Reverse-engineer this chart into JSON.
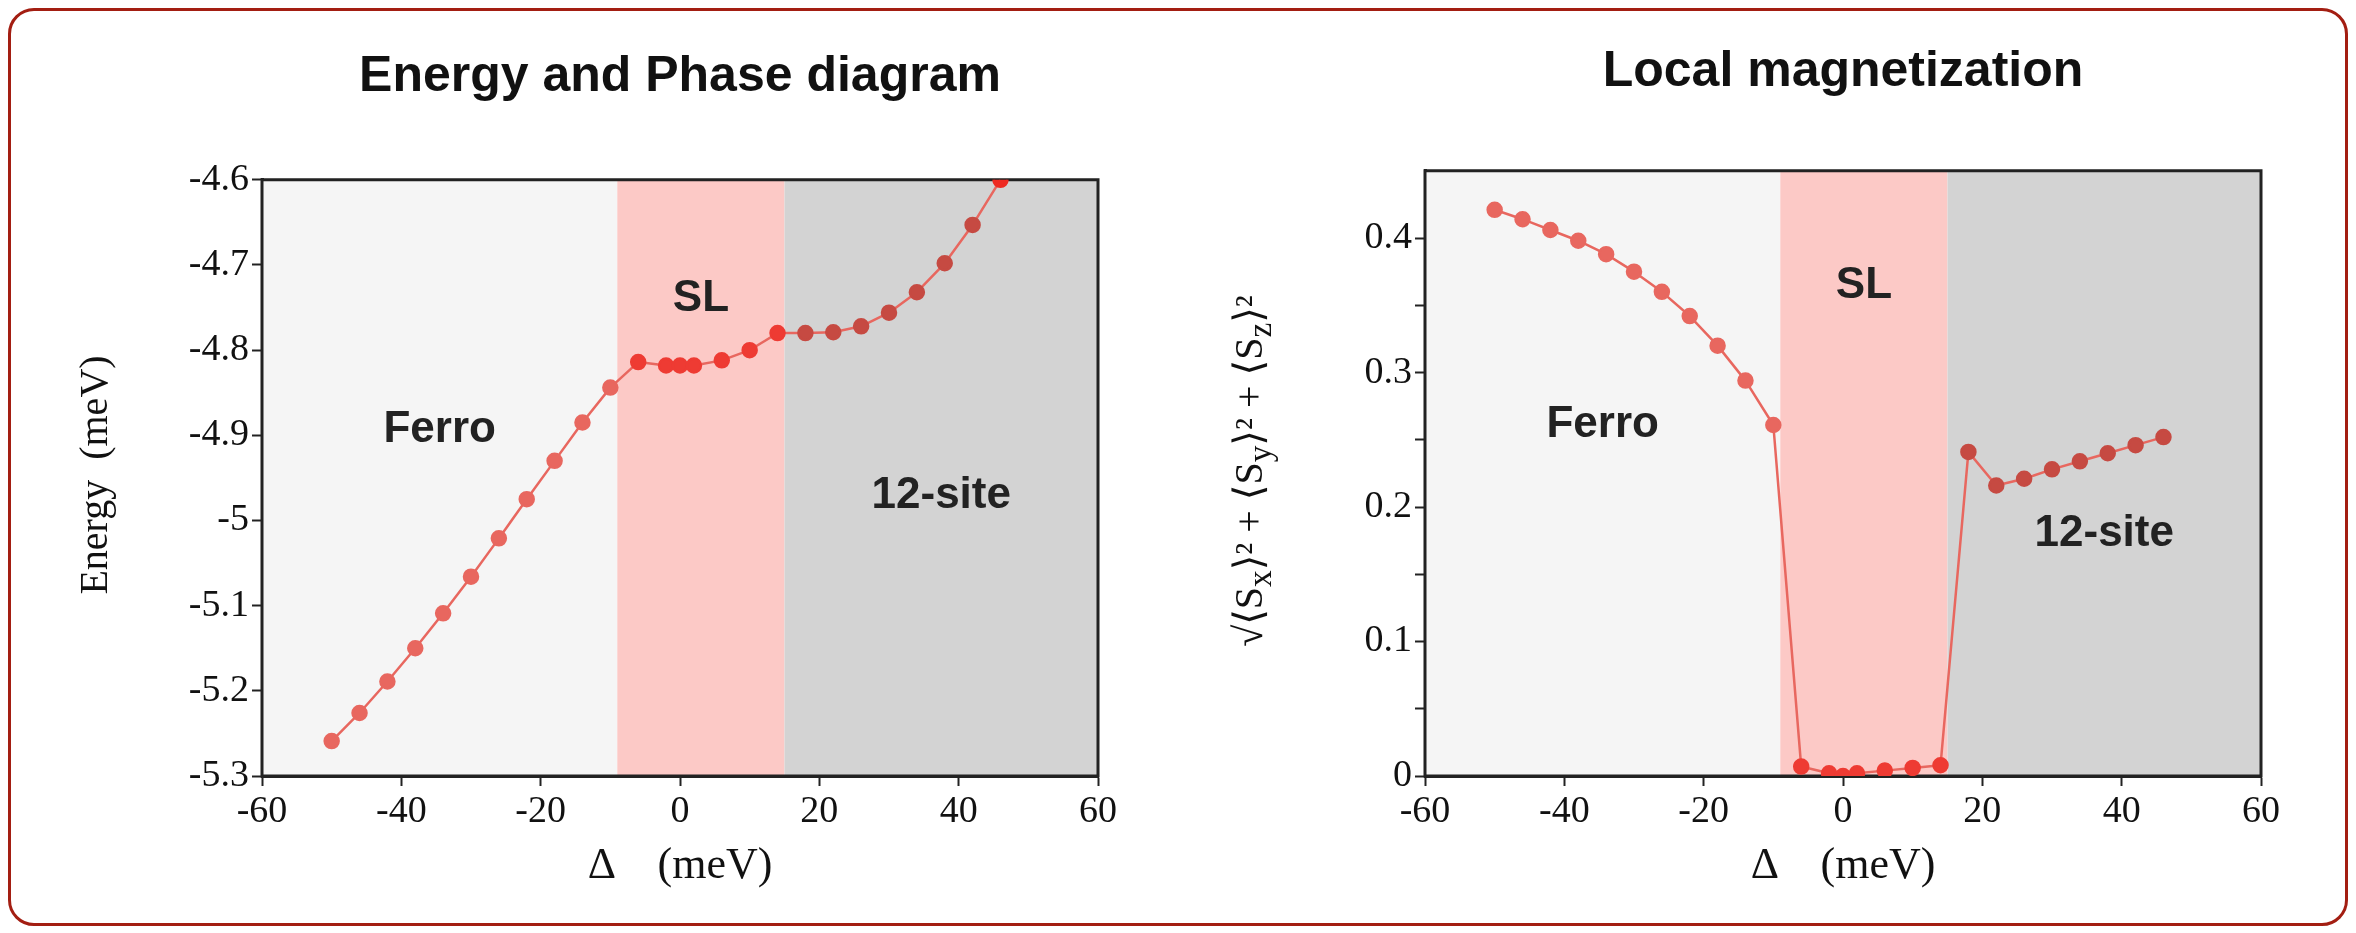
{
  "chart_data": [
    {
      "type": "line",
      "title": "Energy and Phase diagram",
      "xlabel": "Δ    (meV)",
      "ylabel": "Energy  (meV)",
      "xlim": [
        -60,
        60
      ],
      "xticks": [
        -60,
        -40,
        -20,
        0,
        20,
        40,
        60
      ],
      "ylim": [
        -5.3,
        -4.6
      ],
      "yticks": [
        -5.3,
        -5.2,
        -5.1,
        -5,
        -4.9,
        -4.8,
        -4.7,
        -4.6
      ],
      "grid": false,
      "marker": "circle",
      "line_style": "solid",
      "bands": [
        {
          "axis": "x",
          "from": -60,
          "to": -9,
          "label": "Ferro",
          "color": "#f5f5f5"
        },
        {
          "axis": "x",
          "from": -9,
          "to": 15,
          "label": "SL",
          "color": "#fcc9c6"
        },
        {
          "axis": "x",
          "from": 15,
          "to": 60,
          "label": "12-site",
          "color": "#d3d3d3"
        }
      ],
      "series": [
        {
          "color": "#e8675f",
          "x": [
            -50,
            -46,
            -42,
            -38,
            -34,
            -30,
            -26,
            -22,
            -18,
            -14,
            -10,
            -6,
            -2,
            0,
            2,
            6,
            10,
            14,
            18,
            22,
            26,
            30,
            34,
            38,
            42,
            46
          ],
          "values": [
            -5.259,
            -5.226,
            -5.189,
            -5.15,
            -5.109,
            -5.066,
            -5.021,
            -4.975,
            -4.93,
            -4.885,
            -4.844,
            -4.814,
            -4.818,
            -4.818,
            -4.818,
            -4.812,
            -4.8,
            -4.78,
            -4.78,
            -4.779,
            -4.772,
            -4.756,
            -4.732,
            -4.698,
            -4.653,
            -4.6
          ],
          "colors": [
            "#e8675f",
            "#e8675f",
            "#e8675f",
            "#e8675f",
            "#e8675f",
            "#e8675f",
            "#e8675f",
            "#e8675f",
            "#e8675f",
            "#e8675f",
            "#e8675f",
            "#ee3b33",
            "#ee3b33",
            "#ee3b33",
            "#ee3b33",
            "#ee3b33",
            "#ee3b33",
            "#ee3b33",
            "#c64a42",
            "#c64a42",
            "#c64a42",
            "#c64a42",
            "#c64a42",
            "#c64a42",
            "#c64a42",
            "#ee2a22"
          ]
        }
      ]
    },
    {
      "type": "line",
      "title": "Local magnetization",
      "xlabel": "Δ    (meV)",
      "ylabel": "√⟨S$_{x}$⟩² + ⟨S$_{y}$⟩² + ⟨S$_{z}$⟩²",
      "xlim": [
        -60,
        60
      ],
      "xticks": [
        -60,
        -40,
        -20,
        0,
        20,
        40,
        60
      ],
      "ylim": [
        0,
        0.45
      ],
      "yticks": [
        0,
        {
          "value": 0.05,
          "label": null
        },
        0.1,
        {
          "value": 0.15,
          "label": null
        },
        0.2,
        {
          "value": 0.25,
          "label": null
        },
        0.3,
        {
          "value": 0.35,
          "label": null
        },
        0.4
      ],
      "grid": false,
      "marker": "circle",
      "line_style": "solid",
      "bands": [
        {
          "axis": "x",
          "from": -60,
          "to": -9,
          "label": "Ferro",
          "color": "#f5f5f5"
        },
        {
          "axis": "x",
          "from": -9,
          "to": 15,
          "label": "SL",
          "color": "#fcc9c6"
        },
        {
          "axis": "x",
          "from": 15,
          "to": 60,
          "label": "12-site",
          "color": "#d3d3d3"
        }
      ],
      "series": [
        {
          "color": "#e8675f",
          "x": [
            -50,
            -46,
            -42,
            -38,
            -34,
            -30,
            -26,
            -22,
            -18,
            -14,
            -10,
            -6,
            -2,
            0,
            2,
            6,
            10,
            14,
            18,
            22,
            26,
            30,
            34,
            38,
            42,
            46
          ],
          "values": [
            0.421,
            0.414,
            0.406,
            0.398,
            0.388,
            0.375,
            0.36,
            0.342,
            0.32,
            0.294,
            0.261,
            0.007,
            0.002,
            0,
            0.002,
            0.004,
            0.006,
            0.008,
            0.241,
            0.216,
            0.221,
            0.228,
            0.234,
            0.24,
            0.246,
            0.252
          ],
          "colors": [
            "#e8675f",
            "#e8675f",
            "#e8675f",
            "#e8675f",
            "#e8675f",
            "#e8675f",
            "#e8675f",
            "#e8675f",
            "#e8675f",
            "#e8675f",
            "#e8675f",
            "#ee3b33",
            "#ee3b33",
            "#ee3b33",
            "#ee3b33",
            "#ee3b33",
            "#ee3b33",
            "#ee3b33",
            "#c64a42",
            "#c64a42",
            "#c64a42",
            "#c64a42",
            "#c64a42",
            "#c64a42",
            "#c64a42",
            "#c64a42"
          ]
        }
      ]
    }
  ]
}
